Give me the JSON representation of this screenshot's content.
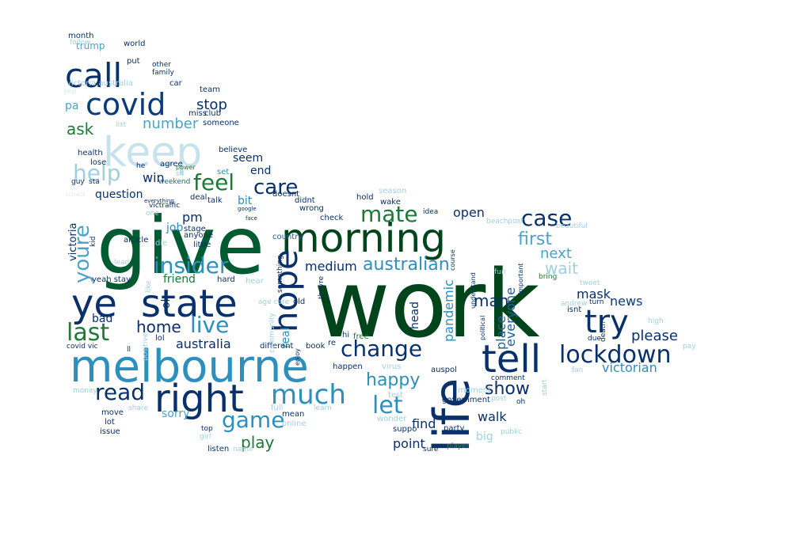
{
  "colors": {
    "darkest": "#00441b",
    "dark_green": "#005a32",
    "green": "#1a7a36",
    "bright_green": "#2f8f38",
    "navy": "#08306b",
    "dark_blue": "#0b3c7a",
    "blue": "#1f5f9e",
    "teal": "#2c8fbd",
    "mid_blue": "#4aa3c8",
    "light_blue": "#9fd0e0",
    "pale_blue": "#c6e2ec",
    "faint_blue": "#dcecf2"
  },
  "words": [
    {
      "text": "work"
    },
    {
      "text": "give"
    },
    {
      "text": "morning"
    },
    {
      "text": "life"
    },
    {
      "text": "melbourne"
    },
    {
      "text": "state"
    },
    {
      "text": "ye"
    },
    {
      "text": "tell"
    },
    {
      "text": "right"
    },
    {
      "text": "keep"
    },
    {
      "text": "call"
    },
    {
      "text": "covid"
    },
    {
      "text": "hope"
    },
    {
      "text": "try"
    },
    {
      "text": "lockdown"
    },
    {
      "text": "change"
    },
    {
      "text": "much"
    },
    {
      "text": "live"
    },
    {
      "text": "insider"
    },
    {
      "text": "mate"
    },
    {
      "text": "case"
    },
    {
      "text": "last"
    },
    {
      "text": "read"
    },
    {
      "text": "game"
    },
    {
      "text": "let"
    },
    {
      "text": "feel"
    },
    {
      "text": "care"
    },
    {
      "text": "help"
    },
    {
      "text": "youre"
    },
    {
      "text": "home"
    },
    {
      "text": "happy"
    },
    {
      "text": "show"
    },
    {
      "text": "australian"
    },
    {
      "text": "first"
    },
    {
      "text": "next"
    },
    {
      "text": "wait"
    },
    {
      "text": "number"
    },
    {
      "text": "stop"
    },
    {
      "text": "ask"
    },
    {
      "text": "play"
    },
    {
      "text": "man"
    },
    {
      "text": "pandemic"
    },
    {
      "text": "everyone"
    },
    {
      "text": "place"
    },
    {
      "text": "mask"
    },
    {
      "text": "news"
    },
    {
      "text": "please"
    },
    {
      "text": "victorian"
    },
    {
      "text": "open"
    },
    {
      "text": "medium"
    },
    {
      "text": "australia"
    },
    {
      "text": "find"
    },
    {
      "text": "walk"
    },
    {
      "text": "point"
    },
    {
      "text": "sorry"
    },
    {
      "text": "question"
    },
    {
      "text": "win"
    },
    {
      "text": "seem"
    },
    {
      "text": "end"
    },
    {
      "text": "bit"
    },
    {
      "text": "pm"
    },
    {
      "text": "job"
    },
    {
      "text": "ok"
    },
    {
      "text": "friend"
    },
    {
      "text": "bad"
    },
    {
      "text": "victoria"
    },
    {
      "text": "real"
    },
    {
      "text": "head"
    },
    {
      "text": "big"
    },
    {
      "text": "trump"
    },
    {
      "text": "pa"
    },
    {
      "text": "health"
    },
    {
      "text": "lose"
    },
    {
      "text": "agree"
    },
    {
      "text": "believe"
    },
    {
      "text": "someone"
    },
    {
      "text": "club"
    },
    {
      "text": "miss"
    },
    {
      "text": "team"
    },
    {
      "text": "car"
    },
    {
      "text": "family"
    },
    {
      "text": "other"
    },
    {
      "text": "put"
    },
    {
      "text": "world"
    },
    {
      "text": "month"
    },
    {
      "text": "follow"
    },
    {
      "text": "victoria australia"
    },
    {
      "text": "yep"
    },
    {
      "text": "list"
    },
    {
      "text": "guy"
    },
    {
      "text": "sta"
    },
    {
      "text": "weekend"
    },
    {
      "text": "sit"
    },
    {
      "text": "set"
    },
    {
      "text": "talk"
    },
    {
      "text": "deal"
    },
    {
      "text": "doesnt"
    },
    {
      "text": "didnt"
    },
    {
      "text": "wrong"
    },
    {
      "text": "hold"
    },
    {
      "text": "season"
    },
    {
      "text": "wake"
    },
    {
      "text": "idea"
    },
    {
      "text": "check"
    },
    {
      "text": "country"
    },
    {
      "text": "stage"
    },
    {
      "text": "anyone"
    },
    {
      "text": "little"
    },
    {
      "text": "article"
    },
    {
      "text": "kid"
    },
    {
      "text": "yeah stay"
    },
    {
      "text": "hard"
    },
    {
      "text": "hear"
    },
    {
      "text": "something"
    },
    {
      "text": "theyre"
    },
    {
      "text": "old"
    },
    {
      "text": "age care"
    },
    {
      "text": "hi"
    },
    {
      "text": "free"
    },
    {
      "text": "book"
    },
    {
      "text": "re"
    },
    {
      "text": "covid vic"
    },
    {
      "text": "lol"
    },
    {
      "text": "ll"
    },
    {
      "text": "positive"
    },
    {
      "text": "different"
    },
    {
      "text": "community"
    },
    {
      "text": "happen"
    },
    {
      "text": "virus"
    },
    {
      "text": "auspol"
    },
    {
      "text": "government"
    },
    {
      "text": "moment"
    },
    {
      "text": "comment"
    },
    {
      "text": "post"
    },
    {
      "text": "test"
    },
    {
      "text": "wonder"
    },
    {
      "text": "suppo"
    },
    {
      "text": "party"
    },
    {
      "text": "sure"
    },
    {
      "text": "player"
    },
    {
      "text": "move"
    },
    {
      "text": "lot"
    },
    {
      "text": "issue"
    },
    {
      "text": "share"
    },
    {
      "text": "money"
    },
    {
      "text": "girl"
    },
    {
      "text": "top"
    },
    {
      "text": "listen"
    },
    {
      "text": "name"
    },
    {
      "text": "mean"
    },
    {
      "text": "online"
    },
    {
      "text": "learn"
    },
    {
      "text": "full"
    },
    {
      "text": "enjoy"
    },
    {
      "text": "oh"
    },
    {
      "text": "fan"
    },
    {
      "text": "due"
    },
    {
      "text": "death"
    },
    {
      "text": "turn"
    },
    {
      "text": "isnt"
    },
    {
      "text": "andrew"
    },
    {
      "text": "high"
    },
    {
      "text": "pay"
    },
    {
      "text": "tweet"
    },
    {
      "text": "bring"
    },
    {
      "text": "important"
    },
    {
      "text": "political"
    },
    {
      "text": "fun"
    },
    {
      "text": "understand"
    },
    {
      "text": "course"
    },
    {
      "text": "beautiful"
    },
    {
      "text": "beachpost"
    },
    {
      "text": "lead"
    },
    {
      "text": "die"
    },
    {
      "text": "like"
    },
    {
      "text": "victraffic"
    },
    {
      "text": "everything"
    },
    {
      "text": "google"
    },
    {
      "text": "face"
    },
    {
      "text": "power"
    },
    {
      "text": "he"
    },
    {
      "text": "one"
    },
    {
      "text": "start"
    },
    {
      "text": "public"
    },
    {
      "text": "school"
    }
  ]
}
